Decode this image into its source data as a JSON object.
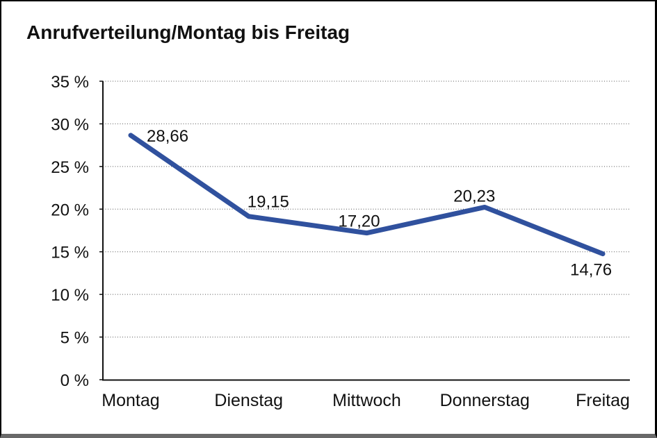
{
  "title": "Anrufverteilung/Montag bis Freitag",
  "frame": {
    "background": "#ffffff",
    "border_color": "#000000",
    "bottom_shadow_color": "#696969"
  },
  "chart_data": {
    "type": "line",
    "title": "Anrufverteilung/Montag bis Freitag",
    "categories": [
      "Montag",
      "Dienstag",
      "Mittwoch",
      "Donnerstag",
      "Freitag"
    ],
    "values": [
      28.66,
      19.15,
      17.2,
      20.23,
      14.76
    ],
    "value_labels": [
      "28,66",
      "19,15",
      "17,20",
      "20,23",
      "14,76"
    ],
    "series_name": "Anrufverteilung",
    "xlabel": "",
    "ylabel": "",
    "ylim": [
      0,
      35
    ],
    "ytick_step": 5,
    "ytick_labels": [
      "0 %",
      "5 %",
      "10 %",
      "15 %",
      "20 %",
      "25 %",
      "30 %",
      "35 %"
    ],
    "grid": "horizontal-dotted",
    "legend_position": "none",
    "line_color": "#30519E",
    "line_width": 7,
    "axis_color": "#111111",
    "gridline_color": "#555555",
    "text_color": "#111111"
  }
}
